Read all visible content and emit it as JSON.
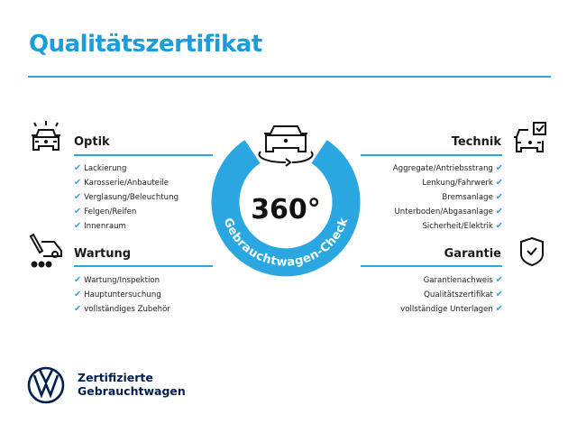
{
  "title": "Qualitätszertifikat",
  "colors": {
    "accent": "#2ba8de",
    "brand_dark": "#001e50"
  },
  "badge": {
    "value": "360°",
    "label": "Gebrauchtwagen-Check"
  },
  "sections": {
    "optik": {
      "heading": "Optik",
      "icon": "car-lights-icon",
      "items": [
        "Lackierung",
        "Karosserie/Anbauteile",
        "Verglasung/Beleuchtung",
        "Felgen/Reifen",
        "Innenraum"
      ]
    },
    "wartung": {
      "heading": "Wartung",
      "icon": "service-tools-icon",
      "items": [
        "Wartung/Inspektion",
        "Hauptuntersuchung",
        "vollständiges Zubehör"
      ]
    },
    "technik": {
      "heading": "Technik",
      "icon": "car-checkbox-icon",
      "items": [
        "Aggregate/Antriebsstrang",
        "Lenkung/Fahrwerk",
        "Bremsanlage",
        "Unterboden/Abgasanlage",
        "Sicherheit/Elektrik"
      ]
    },
    "garantie": {
      "heading": "Garantie",
      "icon": "shield-check-icon",
      "items": [
        "Garantienachweis",
        "Qualitätszertifikat",
        "vollständige Unterlagen"
      ]
    }
  },
  "check_glyph": "✔",
  "footer": {
    "line1": "Zertifizierte",
    "line2": "Gebrauchtwagen",
    "logo": "vw-logo"
  }
}
